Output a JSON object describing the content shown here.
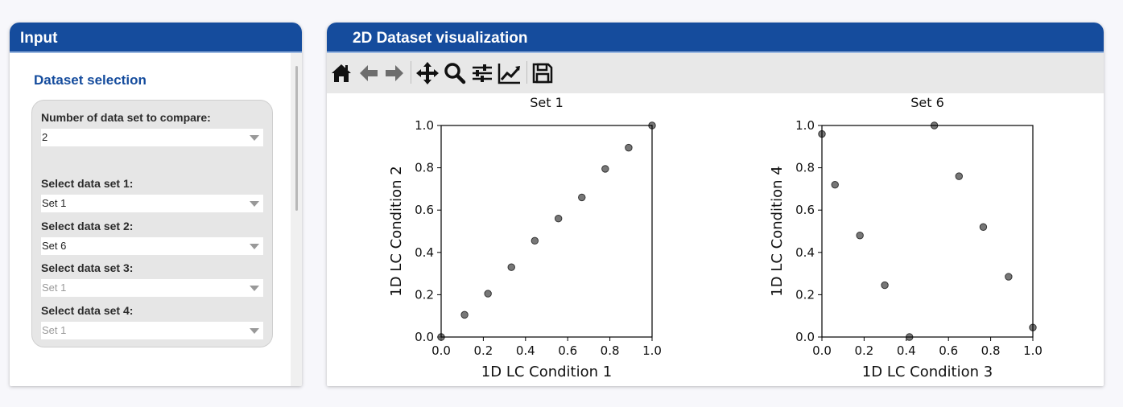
{
  "input_panel": {
    "title": "Input",
    "section_title": "Dataset selection",
    "num_sets_label": "Number of data set to compare:",
    "num_sets_value": "2",
    "selects": [
      {
        "label": "Select data set 1:",
        "value": "Set 1",
        "disabled": false
      },
      {
        "label": "Select data set 2:",
        "value": "Set 6",
        "disabled": false
      },
      {
        "label": "Select data set 3:",
        "value": "Set 1",
        "disabled": true
      },
      {
        "label": "Select data set 4:",
        "value": "Set 1",
        "disabled": true
      }
    ]
  },
  "viz_panel": {
    "title": "2D Dataset visualization",
    "toolbar_icons": [
      "home-icon",
      "back-arrow-icon",
      "forward-arrow-icon",
      "pan-icon",
      "zoom-icon",
      "subplots-config-icon",
      "axes-edit-icon",
      "save-icon"
    ]
  },
  "chart_data": [
    {
      "type": "scatter",
      "title": "Set 1",
      "xlabel": "1D LC Condition 1",
      "ylabel": "1D LC Condition 2",
      "xlim": [
        0,
        1
      ],
      "ylim": [
        0,
        1
      ],
      "xticks": [
        "0.0",
        "0.2",
        "0.4",
        "0.6",
        "0.8",
        "1.0"
      ],
      "yticks": [
        "0.0",
        "0.2",
        "0.4",
        "0.6",
        "0.8",
        "1.0"
      ],
      "points": [
        [
          0.0,
          0.0
        ],
        [
          0.111,
          0.105
        ],
        [
          0.222,
          0.205
        ],
        [
          0.333,
          0.33
        ],
        [
          0.444,
          0.455
        ],
        [
          0.556,
          0.56
        ],
        [
          0.667,
          0.66
        ],
        [
          0.778,
          0.795
        ],
        [
          0.889,
          0.895
        ],
        [
          1.0,
          1.0
        ]
      ],
      "marker_color": "#555555"
    },
    {
      "type": "scatter",
      "title": "Set 6",
      "xlabel": "1D LC Condition 3",
      "ylabel": "1D LC Condition 4",
      "xlim": [
        0,
        1
      ],
      "ylim": [
        0,
        1
      ],
      "xticks": [
        "0.0",
        "0.2",
        "0.4",
        "0.6",
        "0.8",
        "1.0"
      ],
      "yticks": [
        "0.0",
        "0.2",
        "0.4",
        "0.6",
        "0.8",
        "1.0"
      ],
      "points": [
        [
          0.0,
          0.96
        ],
        [
          0.062,
          0.72
        ],
        [
          0.18,
          0.48
        ],
        [
          0.298,
          0.245
        ],
        [
          0.415,
          0.0
        ],
        [
          0.533,
          1.0
        ],
        [
          0.65,
          0.76
        ],
        [
          0.765,
          0.52
        ],
        [
          0.885,
          0.285
        ],
        [
          1.0,
          0.045
        ]
      ],
      "marker_color": "#555555"
    }
  ]
}
